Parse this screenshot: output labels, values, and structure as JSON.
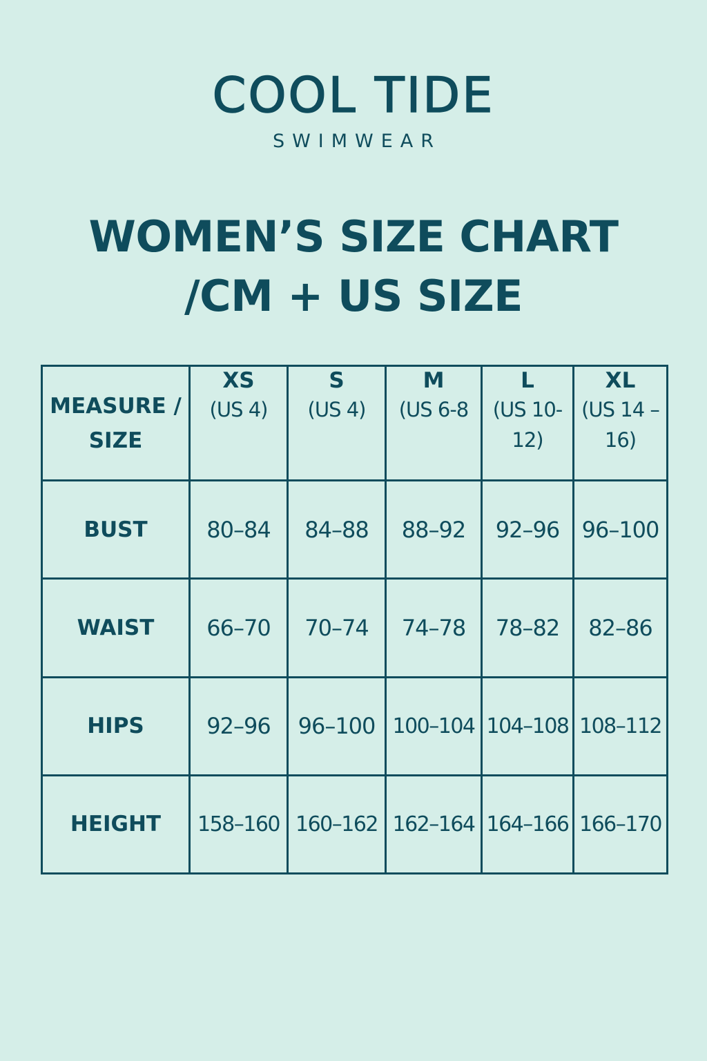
{
  "brand": {
    "name": "COOL TIDE",
    "tagline": "SWIMWEAR"
  },
  "title": {
    "line1": "WOMEN’S SIZE CHART",
    "line2": "/CM + US SIZE"
  },
  "table": {
    "corner_label": "MEASURE / SIZE",
    "sizes": [
      {
        "label": "XS",
        "us": "(US 4)"
      },
      {
        "label": "S",
        "us": "(US 4)"
      },
      {
        "label": "M",
        "us": "(US 6-8"
      },
      {
        "label": "L",
        "us": "(US 10-12)"
      },
      {
        "label": "XL",
        "us": "(US 14 –16)"
      }
    ],
    "rows": [
      {
        "label": "BUST",
        "values": [
          "80–84",
          "84–88",
          "88–92",
          "92–96",
          "96–100"
        ]
      },
      {
        "label": "WAIST",
        "values": [
          "66–70",
          "70–74",
          "74–78",
          "78–82",
          "82–86"
        ]
      },
      {
        "label": "HIPS",
        "values": [
          "92–96",
          "96–100",
          "100–104",
          "104–108",
          "108–112"
        ]
      },
      {
        "label": "HEIGHT",
        "values": [
          "158–160",
          "160–162",
          "162–164",
          "164–166",
          "166–170"
        ]
      }
    ]
  },
  "colors": {
    "background": "#d5eee8",
    "text": "#0f4c5c"
  }
}
